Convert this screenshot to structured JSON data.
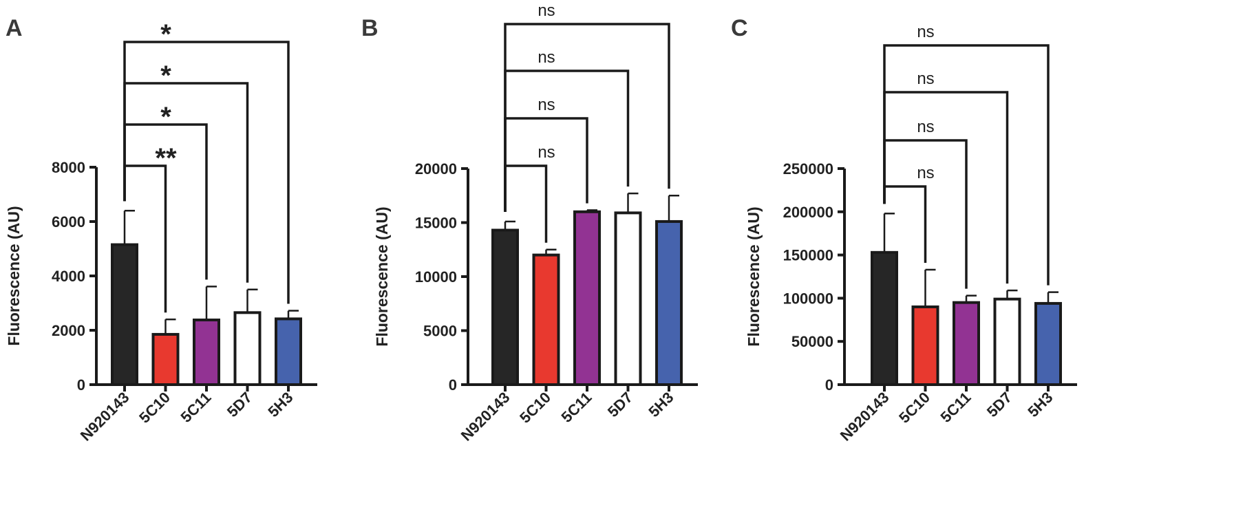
{
  "figure": {
    "panels": [
      "A",
      "B",
      "C"
    ]
  },
  "colors": {
    "N920143": "#262626",
    "5C10": "#e8392f",
    "5C11": "#923393",
    "5D7": "#ffffff",
    "5H3": "#4663ad",
    "axis": "#1a1a1a"
  },
  "chart_data": [
    {
      "panel": "A",
      "type": "bar",
      "categories": [
        "N920143",
        "5C10",
        "5C11",
        "5D7",
        "5H3"
      ],
      "values": [
        5150,
        1850,
        2380,
        2650,
        2420
      ],
      "errors": [
        1250,
        550,
        1230,
        850,
        300
      ],
      "ylabel": "Fluorescence (AU)",
      "ylim": [
        0,
        8000
      ],
      "yticks": [
        "0",
        "2000",
        "4000",
        "6000",
        "8000"
      ],
      "comparisons": [
        {
          "from": "N920143",
          "to": "5C10",
          "label": "**"
        },
        {
          "from": "N920143",
          "to": "5C11",
          "label": "*"
        },
        {
          "from": "N920143",
          "to": "5D7",
          "label": "*"
        },
        {
          "from": "N920143",
          "to": "5H3",
          "label": "*"
        }
      ]
    },
    {
      "panel": "B",
      "type": "bar",
      "categories": [
        "N920143",
        "5C10",
        "5C11",
        "5D7",
        "5H3"
      ],
      "values": [
        14300,
        12000,
        16000,
        15900,
        15100
      ],
      "errors": [
        800,
        500,
        150,
        1800,
        2400
      ],
      "ylabel": "Fluorescence (AU)",
      "ylim": [
        0,
        20000
      ],
      "yticks": [
        "0",
        "5000",
        "10000",
        "15000",
        "20000"
      ],
      "comparisons": [
        {
          "from": "N920143",
          "to": "5C10",
          "label": "ns"
        },
        {
          "from": "N920143",
          "to": "5C11",
          "label": "ns"
        },
        {
          "from": "N920143",
          "to": "5D7",
          "label": "ns"
        },
        {
          "from": "N920143",
          "to": "5H3",
          "label": "ns"
        }
      ]
    },
    {
      "panel": "C",
      "type": "bar",
      "categories": [
        "N920143",
        "5C10",
        "5C11",
        "5D7",
        "5H3"
      ],
      "values": [
        153000,
        90000,
        95000,
        99000,
        94000
      ],
      "errors": [
        45000,
        43000,
        8000,
        10000,
        13000
      ],
      "ylabel": "Fluorescence (AU)",
      "ylim": [
        0,
        250000
      ],
      "yticks": [
        "0",
        "50000",
        "100000",
        "150000",
        "200000",
        "250000"
      ],
      "comparisons": [
        {
          "from": "N920143",
          "to": "5C10",
          "label": "ns"
        },
        {
          "from": "N920143",
          "to": "5C11",
          "label": "ns"
        },
        {
          "from": "N920143",
          "to": "5D7",
          "label": "ns"
        },
        {
          "from": "N920143",
          "to": "5H3",
          "label": "ns"
        }
      ]
    }
  ]
}
